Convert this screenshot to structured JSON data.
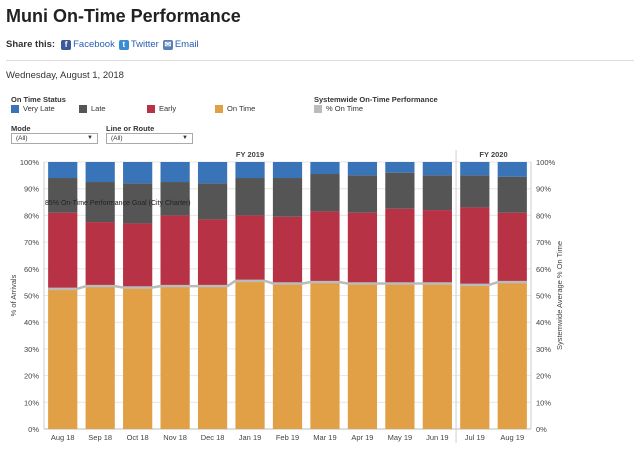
{
  "page": {
    "title": "Muni On-Time Performance",
    "share_label": "Share this:",
    "share_links": [
      "Facebook",
      "Twitter",
      "Email"
    ],
    "date": "Wednesday, August 1, 2018"
  },
  "legend": {
    "status_title": "On Time Status",
    "status_items": [
      {
        "label": "Very Late",
        "color": "#3a74b8"
      },
      {
        "label": "Late",
        "color": "#555555"
      },
      {
        "label": "Early",
        "color": "#b83246"
      },
      {
        "label": "On Time",
        "color": "#e1a045"
      }
    ],
    "systemwide_title": "Systemwide On-Time Performance",
    "systemwide_item": {
      "label": "% On Time",
      "color": "#bbbbbb"
    }
  },
  "filters": {
    "mode_label": "Mode",
    "mode_value": "(All)",
    "route_label": "Line or Route",
    "route_value": "(All)"
  },
  "chart_data": {
    "type": "bar",
    "stacked": true,
    "fiscal_years": [
      {
        "label": "FY 2019",
        "months": 11
      },
      {
        "label": "FY 2020",
        "months": 2
      }
    ],
    "categories": [
      "Aug 18",
      "Sep 18",
      "Oct 18",
      "Nov 18",
      "Dec 18",
      "Jan 19",
      "Feb 19",
      "Mar 19",
      "Apr 19",
      "May 19",
      "Jun 19",
      "Jul 19",
      "Aug 19"
    ],
    "series": [
      {
        "name": "On Time",
        "color": "#e1a045",
        "values": [
          52.5,
          53.5,
          53,
          53.5,
          53.5,
          55.5,
          54.5,
          55,
          54.5,
          54.5,
          54.5,
          54,
          55
        ]
      },
      {
        "name": "Early",
        "color": "#b83246",
        "values": [
          28.5,
          24,
          24,
          26.5,
          25,
          24.5,
          25,
          26.5,
          26.5,
          28,
          27.5,
          29,
          26
        ]
      },
      {
        "name": "Late",
        "color": "#555555",
        "values": [
          13,
          15,
          15,
          12.5,
          13.5,
          14,
          14.5,
          14,
          14,
          13.5,
          13,
          12,
          13.5
        ]
      },
      {
        "name": "Very Late",
        "color": "#3a74b8",
        "values": [
          6,
          7.5,
          8,
          7.5,
          8,
          6,
          6,
          4.5,
          5,
          4,
          5,
          5,
          5.5
        ]
      }
    ],
    "systemwide_on_time": {
      "name": "% On Time",
      "color": "#bbbbbb",
      "segments": [
        [
          52.5,
          53.5,
          53,
          53.5,
          53.5,
          55.5,
          54.5,
          55,
          54.5,
          54.5,
          54.5
        ],
        [
          54,
          55
        ]
      ]
    },
    "goal_line": {
      "value": 85,
      "label": "85% On-Time Performance Goal (City Charter)"
    },
    "ylabel_left": "% of Arrivals",
    "ylabel_right": "Systemwide Average % On Time",
    "ylim": [
      0,
      100
    ],
    "yticks": [
      "0%",
      "10%",
      "20%",
      "30%",
      "40%",
      "50%",
      "60%",
      "70%",
      "80%",
      "90%",
      "100%"
    ]
  }
}
